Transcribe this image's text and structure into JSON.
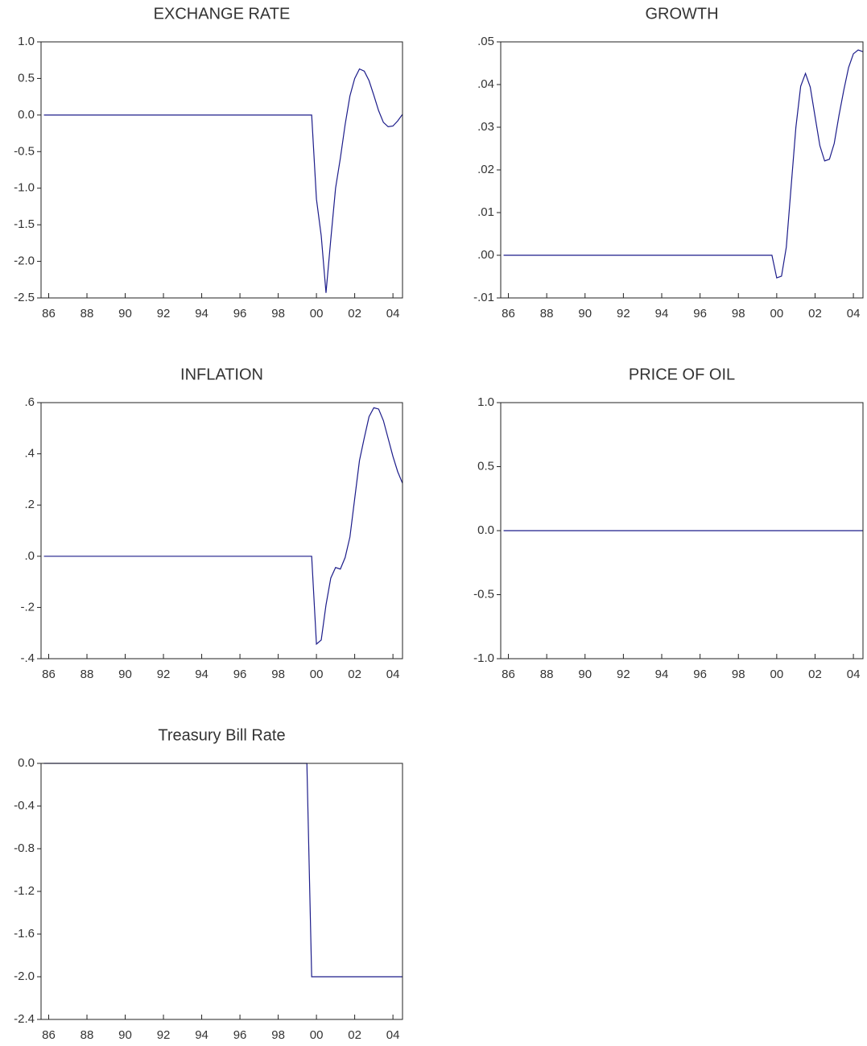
{
  "chart_data": [
    {
      "type": "line",
      "title": "EXCHANGE RATE",
      "color": "#1c1c8a",
      "x": [
        1985.75,
        1999.75,
        2000,
        2000.25,
        2000.5,
        2000.75,
        2001,
        2001.25,
        2001.5,
        2001.75,
        2002,
        2002.25,
        2002.5,
        2002.75,
        2003,
        2003.25,
        2003.5,
        2003.75,
        2004,
        2004.25,
        2004.5
      ],
      "values": [
        0,
        0,
        -1.15,
        -1.65,
        -2.43,
        -1.7,
        -1.0,
        -0.59,
        -0.13,
        0.26,
        0.5,
        0.63,
        0.6,
        0.47,
        0.27,
        0.06,
        -0.1,
        -0.16,
        -0.15,
        -0.08,
        0.01
      ],
      "xlim": [
        1985.6,
        2004.5
      ],
      "xticks": [
        {
          "value": 1986,
          "label": "86"
        },
        {
          "value": 1988,
          "label": "88"
        },
        {
          "value": 1990,
          "label": "90"
        },
        {
          "value": 1992,
          "label": "92"
        },
        {
          "value": 1994,
          "label": "94"
        },
        {
          "value": 1996,
          "label": "96"
        },
        {
          "value": 1998,
          "label": "98"
        },
        {
          "value": 2000,
          "label": "00"
        },
        {
          "value": 2002,
          "label": "02"
        },
        {
          "value": 2004,
          "label": "04"
        }
      ],
      "ylim": [
        -2.5,
        1.0
      ],
      "yticks": [
        {
          "value": 1.0,
          "label": "1.0"
        },
        0.5,
        {
          "value": 0.0,
          "label": "0.0"
        },
        -0.5,
        {
          "value": -1.0,
          "label": "-1.0"
        },
        -1.5,
        {
          "value": -2.0,
          "label": "-2.0"
        },
        -2.5
      ]
    },
    {
      "type": "line",
      "title": "GROWTH",
      "color": "#1c1c8a",
      "x": [
        1985.75,
        1999.75,
        2000,
        2000.25,
        2000.5,
        2000.75,
        2001,
        2001.25,
        2001.5,
        2001.75,
        2002,
        2002.25,
        2002.5,
        2002.75,
        2003,
        2003.25,
        2003.5,
        2003.75,
        2004,
        2004.25,
        2004.5
      ],
      "values": [
        0,
        0,
        -0.0053,
        -0.0049,
        0.0019,
        0.016,
        0.03,
        0.0396,
        0.0426,
        0.0394,
        0.0325,
        0.0257,
        0.0221,
        0.0225,
        0.0262,
        0.0328,
        0.0387,
        0.044,
        0.0472,
        0.0481,
        0.0477
      ],
      "xlim": [
        1985.6,
        2004.5
      ],
      "xticks": [
        {
          "value": 1986,
          "label": "86"
        },
        {
          "value": 1988,
          "label": "88"
        },
        {
          "value": 1990,
          "label": "90"
        },
        {
          "value": 1992,
          "label": "92"
        },
        {
          "value": 1994,
          "label": "94"
        },
        {
          "value": 1996,
          "label": "96"
        },
        {
          "value": 1998,
          "label": "98"
        },
        {
          "value": 2000,
          "label": "00"
        },
        {
          "value": 2002,
          "label": "02"
        },
        {
          "value": 2004,
          "label": "04"
        }
      ],
      "ylim": [
        -0.01,
        0.05
      ],
      "yticks": [
        {
          "value": 0.05,
          "label": ".05"
        },
        {
          "value": 0.04,
          "label": ".04"
        },
        {
          "value": 0.03,
          "label": ".03"
        },
        {
          "value": 0.02,
          "label": ".02"
        },
        {
          "value": 0.01,
          "label": ".01"
        },
        {
          "value": 0.0,
          "label": ".00"
        },
        {
          "value": -0.01,
          "label": "-.01"
        }
      ]
    },
    {
      "type": "line",
      "title": "INFLATION",
      "color": "#1c1c8a",
      "x": [
        1985.75,
        1999.75,
        2000,
        2000.25,
        2000.5,
        2000.75,
        2001,
        2001.25,
        2001.5,
        2001.75,
        2002,
        2002.25,
        2002.5,
        2002.75,
        2003,
        2003.25,
        2003.5,
        2003.75,
        2004,
        2004.25,
        2004.5
      ],
      "values": [
        0,
        0,
        -0.343,
        -0.327,
        -0.19,
        -0.085,
        -0.044,
        -0.05,
        -0.005,
        0.075,
        0.225,
        0.374,
        0.462,
        0.545,
        0.58,
        0.575,
        0.53,
        0.46,
        0.39,
        0.33,
        0.285
      ],
      "xlim": [
        1985.6,
        2004.5
      ],
      "xticks": [
        {
          "value": 1986,
          "label": "86"
        },
        {
          "value": 1988,
          "label": "88"
        },
        {
          "value": 1990,
          "label": "90"
        },
        {
          "value": 1992,
          "label": "92"
        },
        {
          "value": 1994,
          "label": "94"
        },
        {
          "value": 1996,
          "label": "96"
        },
        {
          "value": 1998,
          "label": "98"
        },
        {
          "value": 2000,
          "label": "00"
        },
        {
          "value": 2002,
          "label": "02"
        },
        {
          "value": 2004,
          "label": "04"
        }
      ],
      "ylim": [
        -0.4,
        0.6
      ],
      "yticks": [
        {
          "value": 0.6,
          "label": ".6"
        },
        {
          "value": 0.4,
          "label": ".4"
        },
        {
          "value": 0.2,
          "label": ".2"
        },
        {
          "value": 0.0,
          "label": ".0"
        },
        {
          "value": -0.2,
          "label": "-.2"
        },
        {
          "value": -0.4,
          "label": "-.4"
        }
      ]
    },
    {
      "type": "line",
      "title": "PRICE OF OIL",
      "color": "#1c1c8a",
      "x": [
        1985.75,
        2004.5
      ],
      "values": [
        0,
        0
      ],
      "xlim": [
        1985.6,
        2004.5
      ],
      "xticks": [
        {
          "value": 1986,
          "label": "86"
        },
        {
          "value": 1988,
          "label": "88"
        },
        {
          "value": 1990,
          "label": "90"
        },
        {
          "value": 1992,
          "label": "92"
        },
        {
          "value": 1994,
          "label": "94"
        },
        {
          "value": 1996,
          "label": "96"
        },
        {
          "value": 1998,
          "label": "98"
        },
        {
          "value": 2000,
          "label": "00"
        },
        {
          "value": 2002,
          "label": "02"
        },
        {
          "value": 2004,
          "label": "04"
        }
      ],
      "ylim": [
        -1.0,
        1.0
      ],
      "yticks": [
        {
          "value": 1.0,
          "label": "1.0"
        },
        0.5,
        {
          "value": 0.0,
          "label": "0.0"
        },
        -0.5,
        {
          "value": -1.0,
          "label": "-1.0"
        }
      ]
    },
    {
      "type": "line",
      "title": "Treasury Bill Rate",
      "color": "#1c1c8a",
      "x": [
        1985.75,
        1999.5,
        1999.75,
        2004.5
      ],
      "values": [
        0,
        0,
        -2.0,
        -2.0
      ],
      "xlim": [
        1985.6,
        2004.5
      ],
      "xticks": [
        {
          "value": 1986,
          "label": "86"
        },
        {
          "value": 1988,
          "label": "88"
        },
        {
          "value": 1990,
          "label": "90"
        },
        {
          "value": 1992,
          "label": "92"
        },
        {
          "value": 1994,
          "label": "94"
        },
        {
          "value": 1996,
          "label": "96"
        },
        {
          "value": 1998,
          "label": "98"
        },
        {
          "value": 2000,
          "label": "00"
        },
        {
          "value": 2002,
          "label": "02"
        },
        {
          "value": 2004,
          "label": "04"
        }
      ],
      "ylim": [
        -2.4,
        0.0
      ],
      "yticks": [
        {
          "value": 0.0,
          "label": "0.0"
        },
        -0.4,
        -0.8,
        -1.2,
        -1.6,
        {
          "value": -2.0,
          "label": "-2.0"
        },
        -2.4
      ]
    }
  ]
}
